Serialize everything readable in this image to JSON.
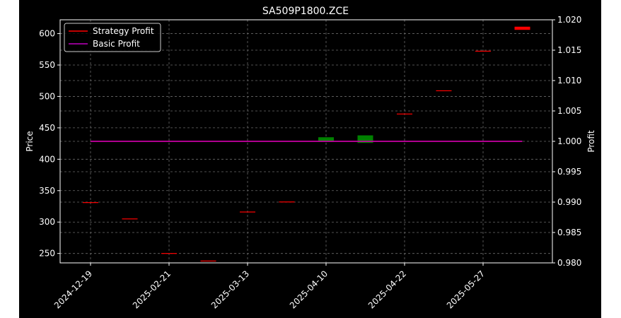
{
  "chart_data": {
    "type": "candlestick",
    "title": "SA509P1800.ZCE",
    "ylabel": "Price",
    "y2label": "Profit",
    "ylim": [
      235,
      622
    ],
    "y2lim": [
      0.98,
      1.02
    ],
    "yticks": [
      250,
      300,
      350,
      400,
      450,
      500,
      550,
      600
    ],
    "y2ticks": [
      "0.980",
      "0.985",
      "0.990",
      "0.995",
      "1.000",
      "1.005",
      "1.010",
      "1.015",
      "1.020"
    ],
    "xticks": [
      {
        "index": 0,
        "label": "2024-12-19"
      },
      {
        "index": 2,
        "label": "2025-02-21"
      },
      {
        "index": 4,
        "label": "2025-03-13"
      },
      {
        "index": 6,
        "label": "2025-04-10"
      },
      {
        "index": 8,
        "label": "2025-04-22"
      },
      {
        "index": 10,
        "label": "2025-05-27"
      }
    ],
    "candles": [
      {
        "i": 0,
        "open": 331,
        "close": 331,
        "color": "#ff0000"
      },
      {
        "i": 1,
        "open": 305,
        "close": 305,
        "color": "#ff0000"
      },
      {
        "i": 2,
        "open": 250,
        "close": 250,
        "color": "#ff0000"
      },
      {
        "i": 3,
        "open": 238,
        "close": 238,
        "color": "#ff0000"
      },
      {
        "i": 4,
        "open": 316,
        "close": 316,
        "color": "#ff0000"
      },
      {
        "i": 5,
        "open": 332,
        "close": 332,
        "color": "#ff0000"
      },
      {
        "i": 6,
        "open": 435,
        "close": 429,
        "color": "#008000"
      },
      {
        "i": 7,
        "open": 438,
        "close": 426,
        "color": "#008000"
      },
      {
        "i": 8,
        "open": 472,
        "close": 472,
        "color": "#ff0000"
      },
      {
        "i": 9,
        "open": 509,
        "close": 509,
        "color": "#ff0000"
      },
      {
        "i": 10,
        "open": 572,
        "close": 572,
        "color": "#ff0000"
      },
      {
        "i": 11,
        "open": 611,
        "close": 606,
        "color": "#ff0000"
      }
    ],
    "series": [
      {
        "name": "Strategy Profit",
        "color": "#ff0000",
        "values": [
          1.0,
          1.0,
          1.0,
          1.0,
          1.0,
          1.0,
          1.0,
          1.0,
          1.0,
          1.0,
          1.0,
          1.0
        ]
      },
      {
        "name": "Basic Profit",
        "color": "#c000c0",
        "values": [
          1.0,
          1.0,
          1.0,
          1.0,
          1.0,
          1.0,
          1.0,
          1.0,
          1.0,
          1.0,
          1.0,
          1.0
        ]
      }
    ],
    "legend": "top-left",
    "grid": true
  }
}
